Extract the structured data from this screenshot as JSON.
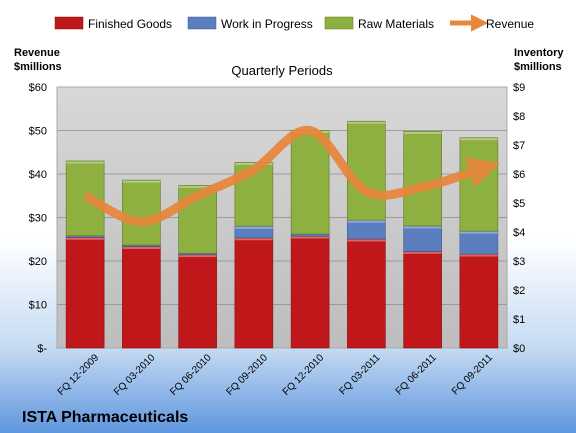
{
  "chart_data": {
    "type": "bar",
    "stacked": true,
    "title": "Quarterly Periods",
    "company": "ISTA Pharmaceuticals",
    "categories": [
      "FQ 12-2009",
      "FQ 03-2010",
      "FQ 06-2010",
      "FQ 09-2010",
      "FQ 12-2010",
      "FQ 03-2011",
      "FQ 06-2011",
      "FQ 09-2011"
    ],
    "series": [
      {
        "name": "Finished Goods",
        "color": "#c0171b",
        "values": [
          3.82,
          3.5,
          3.22,
          3.8,
          3.86,
          3.76,
          3.33,
          3.24
        ]
      },
      {
        "name": "Work in Progress",
        "color": "#5b7fbe",
        "values": [
          0.05,
          0.05,
          0.05,
          0.4,
          0.07,
          0.65,
          0.88,
          0.79
        ]
      },
      {
        "name": "Raw Materials",
        "color": "#8eb041",
        "values": [
          2.58,
          2.24,
          2.34,
          2.2,
          3.57,
          3.41,
          3.26,
          3.22
        ]
      }
    ],
    "revenue": {
      "name": "Revenue",
      "color": "#e8863a",
      "values": [
        35,
        29,
        35,
        41,
        50,
        36,
        37,
        41
      ]
    },
    "left_axis": {
      "label": "Revenue $millions",
      "ylim": [
        0,
        60
      ],
      "ticks": [
        "$-",
        "$10",
        "$20",
        "$30",
        "$40",
        "$50",
        "$60"
      ]
    },
    "right_axis": {
      "label": "Inventory $millions",
      "ylim": [
        0,
        9
      ],
      "ticks": [
        "$0",
        "$1",
        "$2",
        "$3",
        "$4",
        "$5",
        "$6",
        "$7",
        "$8",
        "$9"
      ]
    },
    "legend_position": "top",
    "grid": true
  }
}
